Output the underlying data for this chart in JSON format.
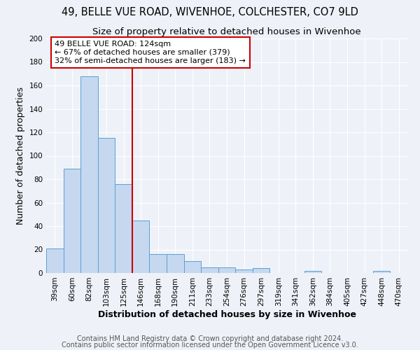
{
  "title1": "49, BELLE VUE ROAD, WIVENHOE, COLCHESTER, CO7 9LD",
  "title2": "Size of property relative to detached houses in Wivenhoe",
  "xlabel": "Distribution of detached houses by size in Wivenhoe",
  "ylabel": "Number of detached properties",
  "footnote1": "Contains HM Land Registry data © Crown copyright and database right 2024.",
  "footnote2": "Contains public sector information licensed under the Open Government Licence v3.0.",
  "bar_labels": [
    "39sqm",
    "60sqm",
    "82sqm",
    "103sqm",
    "125sqm",
    "146sqm",
    "168sqm",
    "190sqm",
    "211sqm",
    "233sqm",
    "254sqm",
    "276sqm",
    "297sqm",
    "319sqm",
    "341sqm",
    "362sqm",
    "384sqm",
    "405sqm",
    "427sqm",
    "448sqm",
    "470sqm"
  ],
  "bar_values": [
    21,
    89,
    168,
    115,
    76,
    45,
    16,
    16,
    10,
    5,
    5,
    3,
    4,
    0,
    0,
    2,
    0,
    0,
    0,
    2,
    0
  ],
  "bar_color": "#c5d8f0",
  "bar_edge_color": "#5a9fd4",
  "vline_x": 4.5,
  "vline_color": "#cc0000",
  "annotation_text": "49 BELLE VUE ROAD: 124sqm\n← 67% of detached houses are smaller (379)\n32% of semi-detached houses are larger (183) →",
  "annotation_box_color": "#ffffff",
  "annotation_box_edge": "#cc0000",
  "ylim": [
    0,
    200
  ],
  "background_color": "#eef2f8",
  "grid_color": "#ffffff",
  "title_fontsize": 10.5,
  "subtitle_fontsize": 9.5,
  "axis_label_fontsize": 9,
  "tick_fontsize": 7.5,
  "annotation_fontsize": 8,
  "footnote_fontsize": 7
}
